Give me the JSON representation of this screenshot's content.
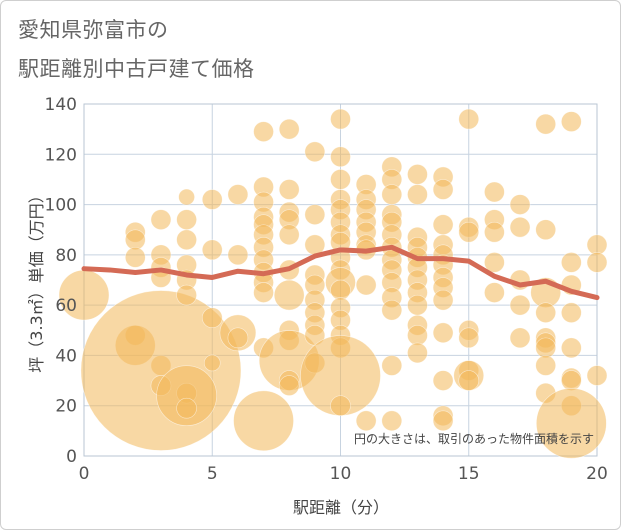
{
  "title_line1": "愛知県弥富市の",
  "title_line2": "駅距離別中古戸建て価格",
  "chart_data": {
    "type": "scatter",
    "xlabel": "駅距離（分）",
    "ylabel": "坪（3.3㎡）単価（万円）",
    "xlim": [
      0,
      20
    ],
    "ylim": [
      0,
      140
    ],
    "x_ticks": [
      0,
      5,
      10,
      15,
      20
    ],
    "y_ticks": [
      0,
      20,
      40,
      60,
      80,
      100,
      120,
      140
    ],
    "grid": true,
    "note": "円の大きさは、取引のあった物件面積を示す",
    "colors": {
      "bubble": "#f3b85a",
      "trend": "#d46a55",
      "grid": "#c7d3e0"
    },
    "points": [
      {
        "x": 0,
        "y": 64,
        "r": 2.5
      },
      {
        "x": 2,
        "y": 89,
        "r": 1
      },
      {
        "x": 2,
        "y": 86,
        "r": 1
      },
      {
        "x": 2,
        "y": 79,
        "r": 1
      },
      {
        "x": 2,
        "y": 48,
        "r": 1
      },
      {
        "x": 2,
        "y": 44,
        "r": 2
      },
      {
        "x": 3,
        "y": 94,
        "r": 1
      },
      {
        "x": 3,
        "y": 80,
        "r": 1
      },
      {
        "x": 3,
        "y": 75,
        "r": 1
      },
      {
        "x": 3,
        "y": 71,
        "r": 1
      },
      {
        "x": 3,
        "y": 36,
        "r": 1
      },
      {
        "x": 3,
        "y": 34,
        "r": 8
      },
      {
        "x": 3,
        "y": 28,
        "r": 1
      },
      {
        "x": 4,
        "y": 103,
        "r": 0.8
      },
      {
        "x": 4,
        "y": 94,
        "r": 1
      },
      {
        "x": 4,
        "y": 86,
        "r": 1
      },
      {
        "x": 4,
        "y": 76,
        "r": 1
      },
      {
        "x": 4,
        "y": 70,
        "r": 1
      },
      {
        "x": 4,
        "y": 64,
        "r": 1
      },
      {
        "x": 4,
        "y": 25,
        "r": 1
      },
      {
        "x": 4,
        "y": 24,
        "r": 3
      },
      {
        "x": 4,
        "y": 19,
        "r": 1
      },
      {
        "x": 5,
        "y": 102,
        "r": 1
      },
      {
        "x": 5,
        "y": 82,
        "r": 1
      },
      {
        "x": 5,
        "y": 55,
        "r": 1
      },
      {
        "x": 5,
        "y": 37,
        "r": 0.8
      },
      {
        "x": 6,
        "y": 104,
        "r": 1
      },
      {
        "x": 6,
        "y": 80,
        "r": 1
      },
      {
        "x": 6,
        "y": 49,
        "r": 1.8
      },
      {
        "x": 6,
        "y": 47,
        "r": 1
      },
      {
        "x": 7,
        "y": 129,
        "r": 1
      },
      {
        "x": 7,
        "y": 107,
        "r": 1
      },
      {
        "x": 7,
        "y": 101,
        "r": 1
      },
      {
        "x": 7,
        "y": 95,
        "r": 1
      },
      {
        "x": 7,
        "y": 92,
        "r": 1
      },
      {
        "x": 7,
        "y": 88,
        "r": 1
      },
      {
        "x": 7,
        "y": 83,
        "r": 1
      },
      {
        "x": 7,
        "y": 78,
        "r": 1
      },
      {
        "x": 7,
        "y": 73,
        "r": 1
      },
      {
        "x": 7,
        "y": 69,
        "r": 1
      },
      {
        "x": 7,
        "y": 65,
        "r": 1
      },
      {
        "x": 7,
        "y": 43,
        "r": 1
      },
      {
        "x": 7,
        "y": 14,
        "r": 3
      },
      {
        "x": 8,
        "y": 130,
        "r": 1
      },
      {
        "x": 8,
        "y": 106,
        "r": 1
      },
      {
        "x": 8,
        "y": 97,
        "r": 1
      },
      {
        "x": 8,
        "y": 94,
        "r": 1
      },
      {
        "x": 8,
        "y": 88,
        "r": 1
      },
      {
        "x": 8,
        "y": 74,
        "r": 1
      },
      {
        "x": 8,
        "y": 64,
        "r": 1.5
      },
      {
        "x": 8,
        "y": 50,
        "r": 1
      },
      {
        "x": 8,
        "y": 46,
        "r": 1
      },
      {
        "x": 8,
        "y": 38,
        "r": 3
      },
      {
        "x": 8,
        "y": 30,
        "r": 1
      },
      {
        "x": 8,
        "y": 28,
        "r": 1
      },
      {
        "x": 9,
        "y": 121,
        "r": 1
      },
      {
        "x": 9,
        "y": 96,
        "r": 1
      },
      {
        "x": 9,
        "y": 84,
        "r": 1
      },
      {
        "x": 9,
        "y": 72,
        "r": 1
      },
      {
        "x": 9,
        "y": 68,
        "r": 1
      },
      {
        "x": 9,
        "y": 62,
        "r": 1
      },
      {
        "x": 9,
        "y": 57,
        "r": 1
      },
      {
        "x": 9,
        "y": 52,
        "r": 1
      },
      {
        "x": 9,
        "y": 48,
        "r": 1
      },
      {
        "x": 9,
        "y": 37,
        "r": 1
      },
      {
        "x": 10,
        "y": 134,
        "r": 1
      },
      {
        "x": 10,
        "y": 119,
        "r": 1
      },
      {
        "x": 10,
        "y": 110,
        "r": 1
      },
      {
        "x": 10,
        "y": 102,
        "r": 1
      },
      {
        "x": 10,
        "y": 98,
        "r": 1
      },
      {
        "x": 10,
        "y": 93,
        "r": 1
      },
      {
        "x": 10,
        "y": 88,
        "r": 1
      },
      {
        "x": 10,
        "y": 85,
        "r": 1
      },
      {
        "x": 10,
        "y": 79,
        "r": 1
      },
      {
        "x": 10,
        "y": 74,
        "r": 1
      },
      {
        "x": 10,
        "y": 69,
        "r": 1.5
      },
      {
        "x": 10,
        "y": 66,
        "r": 1
      },
      {
        "x": 10,
        "y": 59,
        "r": 1
      },
      {
        "x": 10,
        "y": 54,
        "r": 1
      },
      {
        "x": 10,
        "y": 48,
        "r": 1
      },
      {
        "x": 10,
        "y": 43,
        "r": 1
      },
      {
        "x": 10,
        "y": 32,
        "r": 4
      },
      {
        "x": 10,
        "y": 20,
        "r": 1
      },
      {
        "x": 11,
        "y": 108,
        "r": 1
      },
      {
        "x": 11,
        "y": 102,
        "r": 1
      },
      {
        "x": 11,
        "y": 98,
        "r": 1
      },
      {
        "x": 11,
        "y": 93,
        "r": 1
      },
      {
        "x": 11,
        "y": 89,
        "r": 1
      },
      {
        "x": 11,
        "y": 84,
        "r": 1
      },
      {
        "x": 11,
        "y": 82,
        "r": 1
      },
      {
        "x": 11,
        "y": 68,
        "r": 1
      },
      {
        "x": 11,
        "y": 14,
        "r": 1
      },
      {
        "x": 12,
        "y": 115,
        "r": 1
      },
      {
        "x": 12,
        "y": 110,
        "r": 1
      },
      {
        "x": 12,
        "y": 104,
        "r": 1
      },
      {
        "x": 12,
        "y": 96,
        "r": 1
      },
      {
        "x": 12,
        "y": 93,
        "r": 1
      },
      {
        "x": 12,
        "y": 88,
        "r": 1
      },
      {
        "x": 12,
        "y": 83,
        "r": 1
      },
      {
        "x": 12,
        "y": 78,
        "r": 1
      },
      {
        "x": 12,
        "y": 74,
        "r": 1
      },
      {
        "x": 12,
        "y": 69,
        "r": 1
      },
      {
        "x": 12,
        "y": 63,
        "r": 1
      },
      {
        "x": 12,
        "y": 58,
        "r": 1
      },
      {
        "x": 12,
        "y": 36,
        "r": 1
      },
      {
        "x": 12,
        "y": 14,
        "r": 1
      },
      {
        "x": 13,
        "y": 112,
        "r": 1
      },
      {
        "x": 13,
        "y": 104,
        "r": 1
      },
      {
        "x": 13,
        "y": 87,
        "r": 1
      },
      {
        "x": 13,
        "y": 83,
        "r": 1
      },
      {
        "x": 13,
        "y": 79,
        "r": 1
      },
      {
        "x": 13,
        "y": 75,
        "r": 1
      },
      {
        "x": 13,
        "y": 70,
        "r": 1
      },
      {
        "x": 13,
        "y": 65,
        "r": 1
      },
      {
        "x": 13,
        "y": 60,
        "r": 1
      },
      {
        "x": 13,
        "y": 52,
        "r": 1
      },
      {
        "x": 13,
        "y": 48,
        "r": 1
      },
      {
        "x": 13,
        "y": 41,
        "r": 1
      },
      {
        "x": 14,
        "y": 111,
        "r": 1
      },
      {
        "x": 14,
        "y": 106,
        "r": 1
      },
      {
        "x": 14,
        "y": 92,
        "r": 1
      },
      {
        "x": 14,
        "y": 84,
        "r": 1
      },
      {
        "x": 14,
        "y": 80,
        "r": 1
      },
      {
        "x": 14,
        "y": 76,
        "r": 1
      },
      {
        "x": 14,
        "y": 71,
        "r": 1
      },
      {
        "x": 14,
        "y": 67,
        "r": 1
      },
      {
        "x": 14,
        "y": 62,
        "r": 1
      },
      {
        "x": 14,
        "y": 49,
        "r": 1
      },
      {
        "x": 14,
        "y": 30,
        "r": 1
      },
      {
        "x": 14,
        "y": 16,
        "r": 1
      },
      {
        "x": 14,
        "y": 14,
        "r": 1
      },
      {
        "x": 15,
        "y": 134,
        "r": 1
      },
      {
        "x": 15,
        "y": 91,
        "r": 1
      },
      {
        "x": 15,
        "y": 89,
        "r": 1
      },
      {
        "x": 15,
        "y": 50,
        "r": 1
      },
      {
        "x": 15,
        "y": 47,
        "r": 1
      },
      {
        "x": 15,
        "y": 34,
        "r": 1
      },
      {
        "x": 15,
        "y": 32,
        "r": 1.5
      },
      {
        "x": 15,
        "y": 30,
        "r": 1
      },
      {
        "x": 16,
        "y": 105,
        "r": 1
      },
      {
        "x": 16,
        "y": 94,
        "r": 1
      },
      {
        "x": 16,
        "y": 89,
        "r": 1
      },
      {
        "x": 16,
        "y": 77,
        "r": 1
      },
      {
        "x": 16,
        "y": 65,
        "r": 1
      },
      {
        "x": 17,
        "y": 100,
        "r": 1
      },
      {
        "x": 17,
        "y": 91,
        "r": 1
      },
      {
        "x": 17,
        "y": 70,
        "r": 1
      },
      {
        "x": 17,
        "y": 60,
        "r": 1
      },
      {
        "x": 17,
        "y": 47,
        "r": 1
      },
      {
        "x": 18,
        "y": 132,
        "r": 1
      },
      {
        "x": 18,
        "y": 90,
        "r": 1
      },
      {
        "x": 18,
        "y": 65,
        "r": 1.5
      },
      {
        "x": 18,
        "y": 57,
        "r": 1
      },
      {
        "x": 18,
        "y": 47,
        "r": 1
      },
      {
        "x": 18,
        "y": 45,
        "r": 1
      },
      {
        "x": 18,
        "y": 43,
        "r": 1
      },
      {
        "x": 18,
        "y": 36,
        "r": 1
      },
      {
        "x": 18,
        "y": 25,
        "r": 1
      },
      {
        "x": 19,
        "y": 133,
        "r": 1
      },
      {
        "x": 19,
        "y": 77,
        "r": 1
      },
      {
        "x": 19,
        "y": 68,
        "r": 1
      },
      {
        "x": 19,
        "y": 57,
        "r": 1
      },
      {
        "x": 19,
        "y": 43,
        "r": 1
      },
      {
        "x": 19,
        "y": 31,
        "r": 1
      },
      {
        "x": 19,
        "y": 30,
        "r": 1
      },
      {
        "x": 19,
        "y": 20,
        "r": 1
      },
      {
        "x": 19,
        "y": 13,
        "r": 3.5
      },
      {
        "x": 20,
        "y": 84,
        "r": 1
      },
      {
        "x": 20,
        "y": 77,
        "r": 1
      },
      {
        "x": 20,
        "y": 32,
        "r": 1
      }
    ],
    "trend": {
      "x": [
        0,
        1,
        2,
        3,
        4,
        5,
        6,
        7,
        8,
        9,
        10,
        11,
        12,
        13,
        14,
        15,
        16,
        17,
        18,
        19,
        20
      ],
      "y": [
        74.5,
        74,
        73,
        74,
        72,
        71,
        73.5,
        72.5,
        74.5,
        79.5,
        82,
        81.5,
        83,
        78.5,
        78.5,
        77.5,
        71.5,
        68,
        69.5,
        65.5,
        63
      ]
    }
  }
}
